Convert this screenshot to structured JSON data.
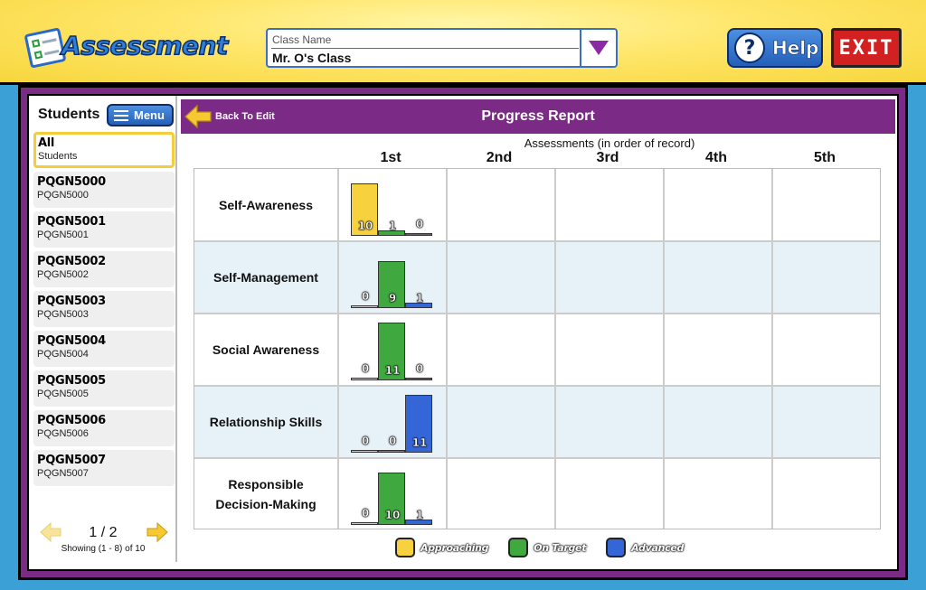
{
  "app": {
    "title": "Assessment"
  },
  "header": {
    "class_select": {
      "label": "Class Name",
      "value": "Mr. O's Class"
    },
    "help_label": "Help",
    "exit_label": "EXIT"
  },
  "sidebar": {
    "heading": "Students",
    "menu_label": "Menu",
    "students": [
      {
        "name": "All",
        "sub": "Students"
      },
      {
        "name": "PQGN5000",
        "sub": "PQGN5000"
      },
      {
        "name": "PQGN5001",
        "sub": "PQGN5001"
      },
      {
        "name": "PQGN5002",
        "sub": "PQGN5002"
      },
      {
        "name": "PQGN5003",
        "sub": "PQGN5003"
      },
      {
        "name": "PQGN5004",
        "sub": "PQGN5004"
      },
      {
        "name": "PQGN5005",
        "sub": "PQGN5005"
      },
      {
        "name": "PQGN5006",
        "sub": "PQGN5006"
      },
      {
        "name": "PQGN5007",
        "sub": "PQGN5007"
      }
    ],
    "pager": {
      "page": "1 / 2",
      "showing": "Showing (1 - 8) of 10"
    }
  },
  "main": {
    "back_label": "Back To Edit",
    "title": "Progress Report",
    "assessments_caption": "Assessments (in order of record)",
    "columns": [
      "1st",
      "2nd",
      "3rd",
      "4th",
      "5th"
    ],
    "rows": [
      {
        "label": "Self-Awareness",
        "values": [
          10,
          1,
          0
        ]
      },
      {
        "label": "Self-Management",
        "values": [
          0,
          9,
          1
        ]
      },
      {
        "label": "Social Awareness",
        "values": [
          0,
          11,
          0
        ]
      },
      {
        "label": "Relationship Skills",
        "values": [
          0,
          0,
          11
        ]
      },
      {
        "label": "Responsible\nDecision-Making",
        "values": [
          0,
          10,
          1
        ]
      }
    ],
    "legend": [
      {
        "label": "Approaching",
        "color": "#f7d23e"
      },
      {
        "label": "On Target",
        "color": "#3fa83f"
      },
      {
        "label": "Advanced",
        "color": "#3566d8"
      }
    ]
  },
  "colors": {
    "accent_purple": "#7b2a86",
    "approaching": "#f7d23e",
    "on_target": "#3fa83f",
    "advanced": "#3566d8"
  },
  "icons": {
    "help": "question-circle-icon",
    "dropdown": "triangle-down-icon",
    "menu": "hamburger-icon",
    "back": "arrow-left-icon",
    "prev": "arrow-left-icon",
    "next": "arrow-right-icon"
  }
}
